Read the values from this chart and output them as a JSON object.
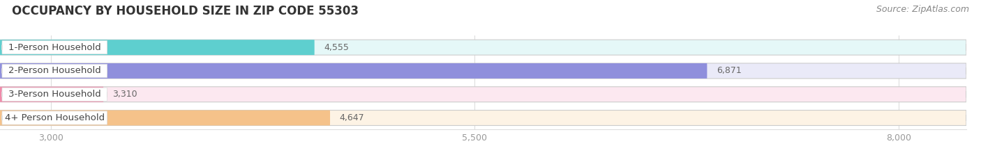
{
  "title": "OCCUPANCY BY HOUSEHOLD SIZE IN ZIP CODE 55303",
  "source": "Source: ZipAtlas.com",
  "categories": [
    "1-Person Household",
    "2-Person Household",
    "3-Person Household",
    "4+ Person Household"
  ],
  "values": [
    4555,
    6871,
    3310,
    4647
  ],
  "bar_colors": [
    "#5ecfcf",
    "#8f8fdc",
    "#f08aaa",
    "#f5c28a"
  ],
  "bar_bg_colors": [
    "#e5f8f8",
    "#eaeaf8",
    "#fce8f0",
    "#fdf3e5"
  ],
  "label_bg_color": "#ffffff",
  "xlim_min": 2700,
  "xlim_max": 8400,
  "xticks": [
    3000,
    5500,
    8000
  ],
  "xticklabels": [
    "3,000",
    "5,500",
    "8,000"
  ],
  "title_fontsize": 12,
  "source_fontsize": 9,
  "label_fontsize": 9.5,
  "value_fontsize": 9,
  "tick_fontsize": 9,
  "background_color": "#ffffff",
  "grid_color": "#dddddd",
  "text_color": "#444444",
  "value_color": "#666666",
  "tick_color": "#999999",
  "bar_height": 0.65,
  "bar_gap": 0.18
}
